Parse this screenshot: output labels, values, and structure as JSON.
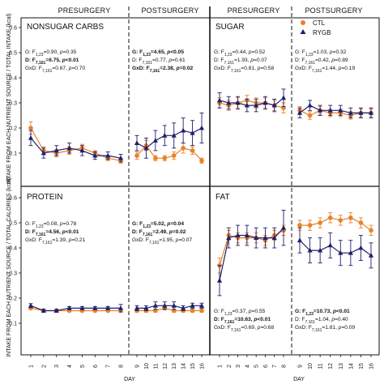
{
  "chart_data": {
    "type": "line",
    "headers": [
      "PRESURGERY",
      "POSTSURGERY",
      "PRESURGERY",
      "POSTSURGERY"
    ],
    "xlabel_left": "DAY",
    "xlabel_right": "DAY",
    "ylabel_top": "INTAKE FROM EACH NUTRIENT SOURCE / TOTAL INTAKE (kcal)",
    "ylabel_bottom": "INTAKE FROM EACH NUTRIENT SOURCE / TOTAL CALORIES (kcal)",
    "ylim": [
      0.0,
      0.6
    ],
    "yticks": [
      "0.1",
      "0.2",
      "0.3",
      "0.4",
      "0.5",
      "0.6"
    ],
    "days_pre": [
      "1",
      "2",
      "3",
      "4",
      "5",
      "6",
      "7",
      "8"
    ],
    "days_post": [
      "9",
      "10",
      "11",
      "12",
      "13",
      "14",
      "15",
      "16"
    ],
    "legend": [
      {
        "name": "CTL",
        "color": "#E8822A",
        "marker": "circle"
      },
      {
        "name": "RYGB",
        "color": "#1F1F6B",
        "marker": "triangle"
      }
    ],
    "panels": [
      {
        "title": "NONSUGAR CARBS",
        "stats": [
          {
            "g": "G: F",
            "s": "1,23",
            "v": "=0.90, ",
            "p": "p",
            "q": "=0.35",
            "bold": false
          },
          {
            "g": "D: F",
            "s": "7,161",
            "v": "=6.75, ",
            "p": "p",
            "q": "<0.01",
            "bold": true
          },
          {
            "g": "GxD: F",
            "s": "7,161",
            "v": "=0.67, ",
            "p": "p",
            "q": "=0.70",
            "bold": false
          }
        ],
        "stats_post": [
          {
            "g": "G: F",
            "s": "1,23",
            "v": "=4.65, ",
            "p": "p",
            "q": "<0.05",
            "bold": true
          },
          {
            "g": "D: F",
            "s": "7,161",
            "v": "=0.77, ",
            "p": "p",
            "q": "=0.61",
            "bold": false
          },
          {
            "g": "GxD: F",
            "s": "7,161",
            "v": "=2.38, ",
            "p": "p",
            "q": "=0.02",
            "bold": true
          }
        ],
        "ctl_pre": [
          0.2,
          0.11,
          0.1,
          0.11,
          0.12,
          0.1,
          0.08,
          0.07
        ],
        "ctl_pre_err": [
          0.025,
          0.015,
          0.015,
          0.015,
          0.015,
          0.01,
          0.01,
          0.01
        ],
        "rygb_pre": [
          0.16,
          0.1,
          0.11,
          0.12,
          0.11,
          0.09,
          0.09,
          0.08
        ],
        "rygb_pre_err": [
          0.03,
          0.02,
          0.02,
          0.02,
          0.02,
          0.015,
          0.015,
          0.015
        ],
        "ctl_post": [
          0.09,
          0.13,
          0.08,
          0.08,
          0.09,
          0.12,
          0.11,
          0.07
        ],
        "ctl_post_err": [
          0.015,
          0.02,
          0.01,
          0.01,
          0.015,
          0.02,
          0.015,
          0.01
        ],
        "rygb_post": [
          0.14,
          0.12,
          0.15,
          0.17,
          0.17,
          0.19,
          0.18,
          0.2
        ],
        "rygb_post_err": [
          0.03,
          0.04,
          0.04,
          0.04,
          0.05,
          0.05,
          0.05,
          0.06
        ]
      },
      {
        "title": "SUGAR",
        "stats": [
          {
            "g": "G: F",
            "s": "1,23",
            "v": "=0.44, ",
            "p": "p",
            "q": "=0.52",
            "bold": false
          },
          {
            "g": "D: F",
            "s": "7,161",
            "v": "=1.93, ",
            "p": "p",
            "q": "=0.07",
            "bold": false
          },
          {
            "g": "GxD: F",
            "s": "7,161",
            "v": "=0.81, ",
            "p": "p",
            "q": "=0.58",
            "bold": false
          }
        ],
        "stats_post": [
          {
            "g": "G: F",
            "s": "1,23",
            "v": "=1.03, ",
            "p": "p",
            "q": "=0.32",
            "bold": false
          },
          {
            "g": "D: F",
            "s": "7,161",
            "v": "=0.42, ",
            "p": "p",
            "q": "=0.89",
            "bold": false
          },
          {
            "g": "GxD: F",
            "s": "7,161",
            "v": "=1.44, ",
            "p": "p",
            "q": "=0.19",
            "bold": false
          }
        ],
        "ctl_pre": [
          0.3,
          0.29,
          0.3,
          0.31,
          0.3,
          0.3,
          0.29,
          0.28
        ],
        "ctl_pre_err": [
          0.02,
          0.02,
          0.02,
          0.02,
          0.02,
          0.02,
          0.02,
          0.02
        ],
        "rygb_pre": [
          0.31,
          0.3,
          0.3,
          0.29,
          0.29,
          0.3,
          0.29,
          0.32
        ],
        "rygb_pre_err": [
          0.03,
          0.025,
          0.025,
          0.025,
          0.025,
          0.025,
          0.025,
          0.035
        ],
        "ctl_post": [
          0.27,
          0.25,
          0.27,
          0.26,
          0.26,
          0.25,
          0.26,
          0.26
        ],
        "ctl_post_err": [
          0.015,
          0.015,
          0.015,
          0.015,
          0.015,
          0.015,
          0.015,
          0.015
        ],
        "rygb_post": [
          0.26,
          0.29,
          0.27,
          0.27,
          0.27,
          0.26,
          0.26,
          0.26
        ],
        "rygb_post_err": [
          0.02,
          0.02,
          0.02,
          0.02,
          0.02,
          0.02,
          0.02,
          0.02
        ]
      },
      {
        "title": "PROTEIN",
        "stats": [
          {
            "g": "G: F",
            "s": "1,23",
            "v": "=0.08, ",
            "p": "p",
            "q": "=0.78",
            "bold": false
          },
          {
            "g": "D: F",
            "s": "7,161",
            "v": "=4.56, ",
            "p": "p",
            "q": "<0.01",
            "bold": true
          },
          {
            "g": "GxD: F",
            "s": "7,161",
            "v": "=1.39, ",
            "p": "p",
            "q": "=0.21",
            "bold": false
          }
        ],
        "stats_post": [
          {
            "g": "G: F",
            "s": "1,23",
            "v": "=5.02, ",
            "p": "p",
            "q": "=0.04",
            "bold": true
          },
          {
            "g": "D: F",
            "s": "7,161",
            "v": "=2.49, ",
            "p": "p",
            "q": "=0.02",
            "bold": true
          },
          {
            "g": "GxD: F",
            "s": "7,161",
            "v": "=1.95, ",
            "p": "p",
            "q": "=0.07",
            "bold": false
          }
        ],
        "ctl_pre": [
          0.16,
          0.15,
          0.15,
          0.15,
          0.15,
          0.15,
          0.15,
          0.15
        ],
        "ctl_pre_err": [
          0.005,
          0.005,
          0.005,
          0.005,
          0.005,
          0.005,
          0.005,
          0.005
        ],
        "rygb_pre": [
          0.17,
          0.15,
          0.15,
          0.16,
          0.16,
          0.16,
          0.16,
          0.16
        ],
        "rygb_pre_err": [
          0.008,
          0.006,
          0.006,
          0.006,
          0.006,
          0.006,
          0.006,
          0.015
        ],
        "ctl_post": [
          0.15,
          0.15,
          0.15,
          0.16,
          0.15,
          0.15,
          0.15,
          0.15
        ],
        "ctl_post_err": [
          0.006,
          0.006,
          0.006,
          0.006,
          0.006,
          0.006,
          0.006,
          0.006
        ],
        "rygb_post": [
          0.16,
          0.16,
          0.17,
          0.17,
          0.17,
          0.16,
          0.17,
          0.17
        ],
        "rygb_post_err": [
          0.01,
          0.01,
          0.015,
          0.015,
          0.015,
          0.01,
          0.01,
          0.01
        ]
      },
      {
        "title": "FAT",
        "stats": [
          {
            "g": "G: F",
            "s": "1,23",
            "v": "=0.37, ",
            "p": "p",
            "q": "=0.55",
            "bold": false
          },
          {
            "g": "D: F",
            "s": "7,161",
            "v": "=10.63, ",
            "p": "p",
            "q": "<0.01",
            "bold": true
          },
          {
            "g": "GxD: F",
            "s": "7,161",
            "v": "=0.69, ",
            "p": "p",
            "q": "=0.68",
            "bold": false
          }
        ],
        "stats_post": [
          {
            "g": "G: F",
            "s": "1,23",
            "v": "=10.73, ",
            "p": "p",
            "q": "<0.01",
            "bold": true
          },
          {
            "g": "D: F",
            "s": "7,161",
            "v": "=1.04, ",
            "p": "p",
            "q": "=0.40",
            "bold": false
          },
          {
            "g": "GxD: F",
            "s": "7,161",
            "v": "=1.81, ",
            "p": "p",
            "q": "=0.09",
            "bold": false
          }
        ],
        "ctl_pre": [
          0.33,
          0.45,
          0.44,
          0.44,
          0.44,
          0.43,
          0.45,
          0.47
        ],
        "ctl_pre_err": [
          0.03,
          0.02,
          0.02,
          0.02,
          0.02,
          0.02,
          0.02,
          0.02
        ],
        "rygb_pre": [
          0.27,
          0.44,
          0.45,
          0.45,
          0.44,
          0.44,
          0.44,
          0.48
        ],
        "rygb_pre_err": [
          0.06,
          0.04,
          0.04,
          0.04,
          0.04,
          0.04,
          0.04,
          0.07
        ],
        "ctl_post": [
          0.49,
          0.49,
          0.5,
          0.52,
          0.51,
          0.52,
          0.5,
          0.47
        ],
        "ctl_post_err": [
          0.02,
          0.02,
          0.02,
          0.02,
          0.02,
          0.02,
          0.02,
          0.02
        ],
        "rygb_post": [
          0.43,
          0.39,
          0.39,
          0.41,
          0.38,
          0.38,
          0.4,
          0.37
        ],
        "rygb_post_err": [
          0.05,
          0.05,
          0.05,
          0.05,
          0.05,
          0.05,
          0.05,
          0.05
        ]
      }
    ]
  }
}
